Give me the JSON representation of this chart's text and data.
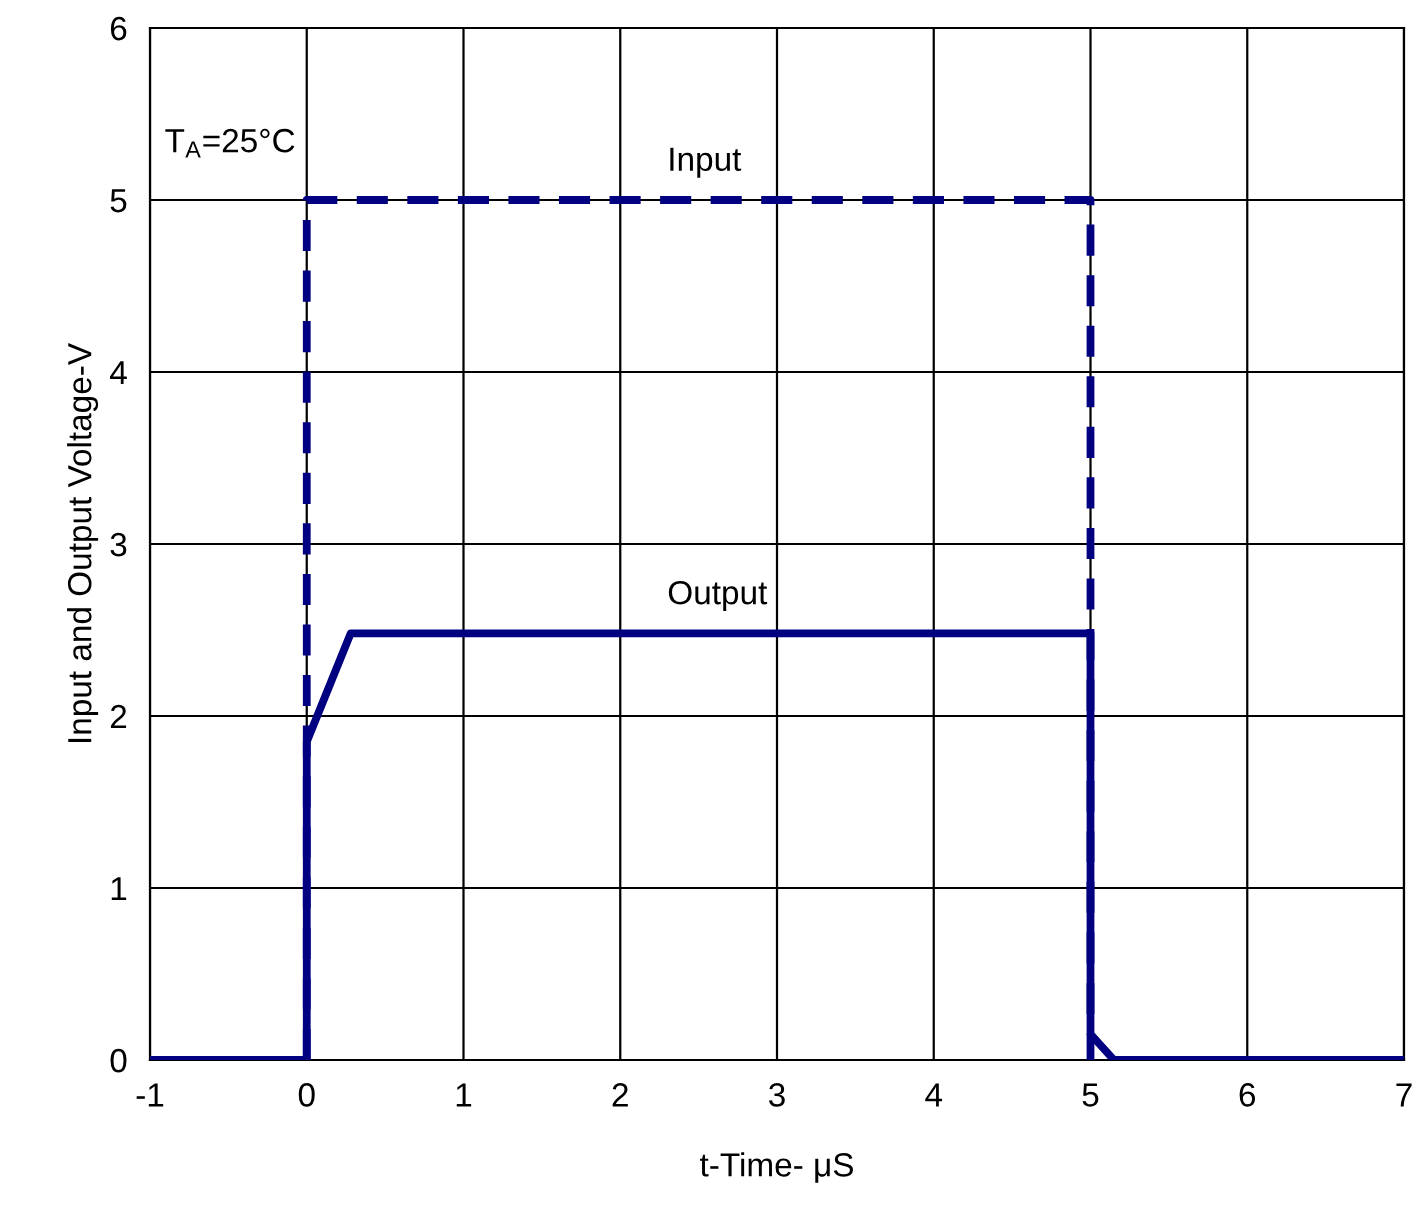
{
  "chart_data": {
    "type": "line",
    "xlabel": "t-Time- μS",
    "ylabel": "Input and Output Voltage-V",
    "xlim": [
      -1,
      7
    ],
    "xticks": [
      -1,
      0,
      1,
      2,
      3,
      4,
      5,
      6,
      7
    ],
    "ylim": [
      0,
      6
    ],
    "yticks": [
      0,
      1,
      2,
      3,
      4,
      5,
      6
    ],
    "grid": true,
    "marker": "none",
    "series": [
      {
        "name": "Input",
        "color": "#000080",
        "line_style": "dashed",
        "x": [
          0,
          0,
          5,
          5
        ],
        "values": [
          0,
          5,
          5,
          0
        ]
      },
      {
        "name": "Output",
        "color": "#000080",
        "line_style": "solid",
        "x": [
          -1,
          0,
          0,
          0.28,
          5,
          5,
          5.15,
          7
        ],
        "values": [
          0,
          0,
          1.85,
          2.48,
          2.48,
          0.15,
          0,
          0
        ]
      }
    ],
    "annotations": [
      "T$_{A}$=25°C"
    ]
  }
}
